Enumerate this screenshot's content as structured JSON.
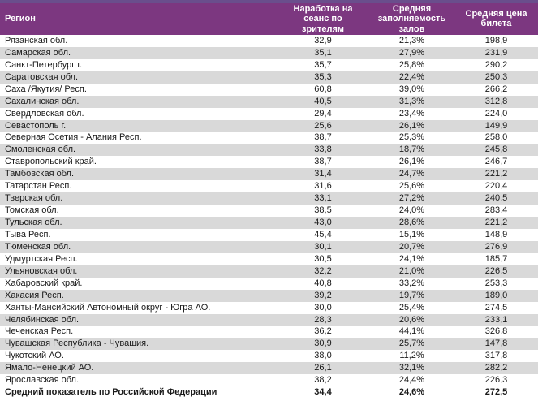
{
  "colors": {
    "top_strip": "#6A4E8C",
    "header_background": "#7C3780",
    "header_text": "#FFFFFF",
    "row_background": "#FFFFFF",
    "row_alt_background": "#D9D9D9",
    "body_text": "#1A1A1A",
    "total_row_rule": "#000000"
  },
  "chart_data": {
    "type": "table",
    "columns": [
      {
        "key": "region",
        "label": "Регион"
      },
      {
        "key": "sessions",
        "label": "Наработка на\nсеанс по\nзрителям"
      },
      {
        "key": "occupancy",
        "label": "Средняя\nзаполняемость\nзалов"
      },
      {
        "key": "price",
        "label": "Средняя цена\nбилета"
      }
    ],
    "rows": [
      {
        "region": "Рязанская обл.",
        "sessions": "32,9",
        "occupancy": "21,3%",
        "price": "198,9"
      },
      {
        "region": "Самарская обл.",
        "sessions": "35,1",
        "occupancy": "27,9%",
        "price": "231,9"
      },
      {
        "region": "Санкт-Петербург г.",
        "sessions": "35,7",
        "occupancy": "25,8%",
        "price": "290,2"
      },
      {
        "region": "Саратовская обл.",
        "sessions": "35,3",
        "occupancy": "22,4%",
        "price": "250,3"
      },
      {
        "region": "Саха /Якутия/ Респ.",
        "sessions": "60,8",
        "occupancy": "39,0%",
        "price": "266,2"
      },
      {
        "region": "Сахалинская обл.",
        "sessions": "40,5",
        "occupancy": "31,3%",
        "price": "312,8"
      },
      {
        "region": "Свердловская обл.",
        "sessions": "29,4",
        "occupancy": "23,4%",
        "price": "224,0"
      },
      {
        "region": "Севастополь г.",
        "sessions": "25,6",
        "occupancy": "26,1%",
        "price": "149,9"
      },
      {
        "region": "Северная Осетия - Алания Респ.",
        "sessions": "38,7",
        "occupancy": "25,3%",
        "price": "258,0"
      },
      {
        "region": "Смоленская обл.",
        "sessions": "33,8",
        "occupancy": "18,7%",
        "price": "245,8"
      },
      {
        "region": "Ставропольский край.",
        "sessions": "38,7",
        "occupancy": "26,1%",
        "price": "246,7"
      },
      {
        "region": "Тамбовская обл.",
        "sessions": "31,4",
        "occupancy": "24,7%",
        "price": "221,2"
      },
      {
        "region": "Татарстан Респ.",
        "sessions": "31,6",
        "occupancy": "25,6%",
        "price": "220,4"
      },
      {
        "region": "Тверская обл.",
        "sessions": "33,1",
        "occupancy": "27,2%",
        "price": "240,5"
      },
      {
        "region": "Томская обл.",
        "sessions": "38,5",
        "occupancy": "24,0%",
        "price": "283,4"
      },
      {
        "region": "Тульская обл.",
        "sessions": "43,0",
        "occupancy": "28,6%",
        "price": "221,2"
      },
      {
        "region": "Тыва Респ.",
        "sessions": "45,4",
        "occupancy": "15,1%",
        "price": "148,9"
      },
      {
        "region": "Тюменская обл.",
        "sessions": "30,1",
        "occupancy": "20,7%",
        "price": "276,9"
      },
      {
        "region": "Удмуртская Респ.",
        "sessions": "30,5",
        "occupancy": "24,1%",
        "price": "185,7"
      },
      {
        "region": "Ульяновская обл.",
        "sessions": "32,2",
        "occupancy": "21,0%",
        "price": "226,5"
      },
      {
        "region": "Хабаровский край.",
        "sessions": "40,8",
        "occupancy": "33,2%",
        "price": "253,3"
      },
      {
        "region": "Хакасия Респ.",
        "sessions": "39,2",
        "occupancy": "19,7%",
        "price": "189,0"
      },
      {
        "region": "Ханты-Мансийский Автономный округ - Югра АО.",
        "sessions": "30,0",
        "occupancy": "25,4%",
        "price": "274,5"
      },
      {
        "region": "Челябинская обл.",
        "sessions": "28,3",
        "occupancy": "20,6%",
        "price": "233,1"
      },
      {
        "region": "Чеченская Респ.",
        "sessions": "36,2",
        "occupancy": "44,1%",
        "price": "326,8"
      },
      {
        "region": "Чувашская Республика - Чувашия.",
        "sessions": "30,9",
        "occupancy": "25,7%",
        "price": "147,8"
      },
      {
        "region": "Чукотский АО.",
        "sessions": "38,0",
        "occupancy": "11,2%",
        "price": "317,8"
      },
      {
        "region": "Ямало-Ненецкий АО.",
        "sessions": "26,1",
        "occupancy": "32,1%",
        "price": "282,2"
      },
      {
        "region": "Ярославская обл.",
        "sessions": "38,2",
        "occupancy": "24,4%",
        "price": "226,3"
      }
    ],
    "total_row": {
      "region": "Средний показатель по Российской Федерации",
      "sessions": "34,4",
      "occupancy": "24,6%",
      "price": "272,5"
    }
  }
}
